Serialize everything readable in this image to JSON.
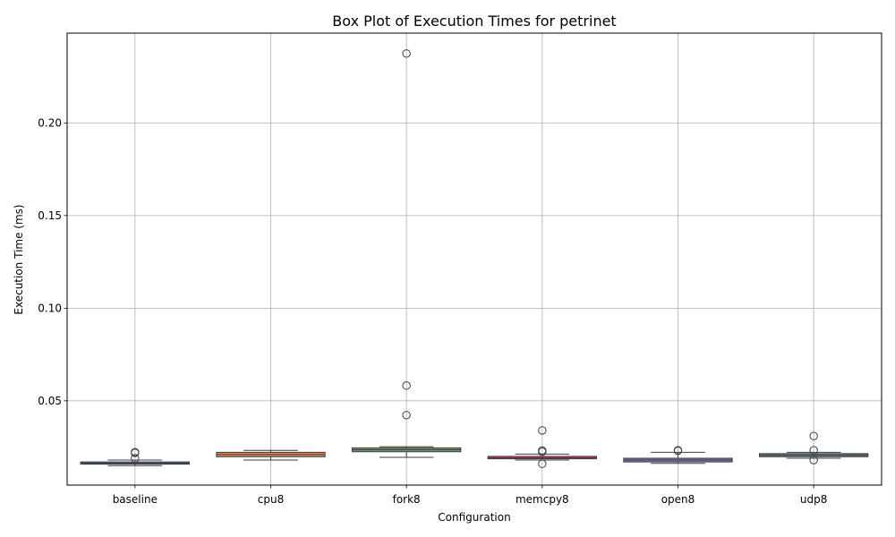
{
  "chart_data": {
    "type": "box",
    "title": "Box Plot of Execution Times for petrinet",
    "xlabel": "Configuration",
    "ylabel": "Execution Time (ms)",
    "ylim": [
      0.0045,
      0.2485
    ],
    "yticks": [
      0.05,
      0.1,
      0.15,
      0.2
    ],
    "ytick_labels": [
      "0.05",
      "0.10",
      "0.15",
      "0.20"
    ],
    "grid": true,
    "categories": [
      "baseline",
      "cpu8",
      "fork8",
      "memcpy8",
      "open8",
      "udp8"
    ],
    "boxes": [
      {
        "name": "baseline",
        "color": "#4c72b0",
        "whisker_low": 0.015,
        "q1": 0.0158,
        "median": 0.0163,
        "q3": 0.017,
        "whisker_high": 0.018,
        "outliers": [
          0.0223,
          0.0219,
          0.019
        ]
      },
      {
        "name": "cpu8",
        "color": "#dd8452",
        "whisker_low": 0.018,
        "q1": 0.0198,
        "median": 0.021,
        "q3": 0.0222,
        "whisker_high": 0.0232,
        "outliers": []
      },
      {
        "name": "fork8",
        "color": "#55a868",
        "whisker_low": 0.0195,
        "q1": 0.0225,
        "median": 0.0236,
        "q3": 0.0246,
        "whisker_high": 0.0252,
        "outliers": [
          0.2375,
          0.0582,
          0.0423
        ]
      },
      {
        "name": "memcpy8",
        "color": "#c44e52",
        "whisker_low": 0.018,
        "q1": 0.0187,
        "median": 0.0192,
        "q3": 0.02,
        "whisker_high": 0.0212,
        "outliers": [
          0.034,
          0.0232,
          0.0225,
          0.016
        ]
      },
      {
        "name": "open8",
        "color": "#8172b3",
        "whisker_low": 0.0162,
        "q1": 0.017,
        "median": 0.018,
        "q3": 0.019,
        "whisker_high": 0.0222,
        "outliers": [
          0.0233,
          0.023
        ]
      },
      {
        "name": "udp8",
        "color": "#937860",
        "whisker_low": 0.019,
        "q1": 0.0198,
        "median": 0.0207,
        "q3": 0.0215,
        "whisker_high": 0.0222,
        "outliers": [
          0.031,
          0.0233,
          0.018
        ]
      }
    ]
  }
}
